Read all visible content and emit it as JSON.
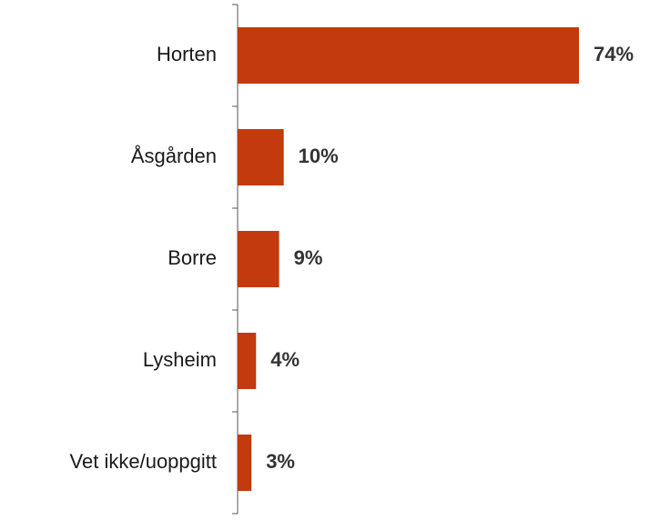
{
  "chart_data": {
    "type": "bar",
    "orientation": "horizontal",
    "categories": [
      "Horten",
      "Åsgården",
      "Borre",
      "Lysheim",
      "Vet ikke/uoppgitt"
    ],
    "values": [
      74,
      10,
      9,
      4,
      3
    ],
    "value_labels": [
      "74%",
      "10%",
      "9%",
      "4%",
      "3%"
    ],
    "color": "#c33a0e"
  }
}
